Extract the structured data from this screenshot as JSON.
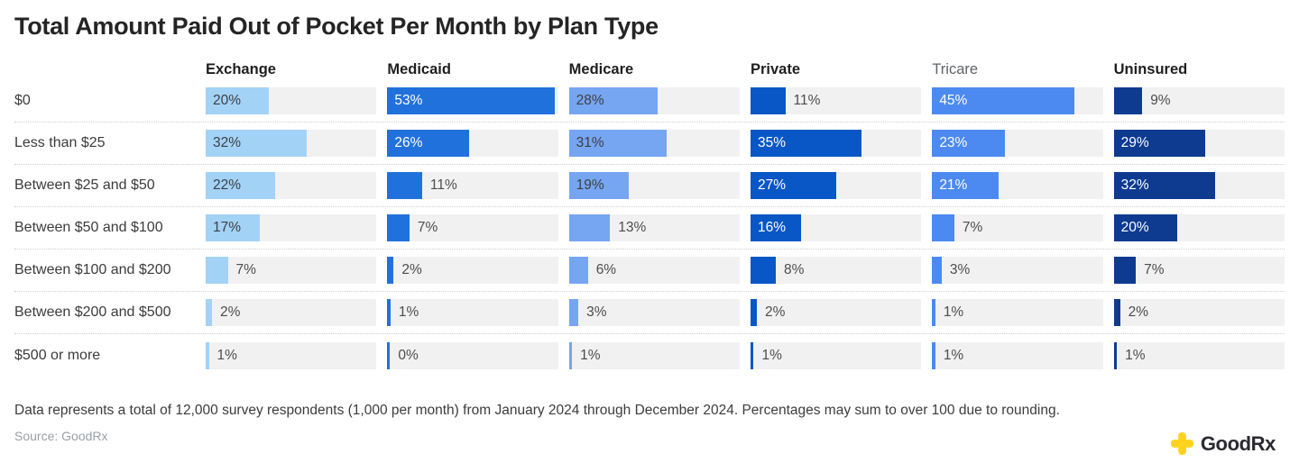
{
  "title": "Total Amount Paid Out of Pocket Per Month by Plan Type",
  "chart_data": {
    "type": "bar",
    "orientation": "horizontal",
    "value_suffix": "%",
    "axis_max": 54,
    "inside_label_min_value": 16,
    "track_color": "#f1f1f1",
    "categories": [
      "$0",
      "Less than $25",
      "Between $25 and $50",
      "Between $50 and $100",
      "Between $100 and $200",
      "Between $200 and $500",
      "$500 or more"
    ],
    "series": [
      {
        "name": "Exchange",
        "color": "#a3d2f7",
        "inside_label_color": "#3c4043",
        "header_muted": false,
        "values": [
          20,
          32,
          22,
          17,
          7,
          2,
          1
        ]
      },
      {
        "name": "Medicaid",
        "color": "#2171dc",
        "inside_label_color": "#ffffff",
        "header_muted": false,
        "values": [
          53,
          26,
          11,
          7,
          2,
          1,
          0
        ]
      },
      {
        "name": "Medicare",
        "color": "#76a5f2",
        "inside_label_color": "#3c4043",
        "header_muted": false,
        "values": [
          28,
          31,
          19,
          13,
          6,
          3,
          1
        ]
      },
      {
        "name": "Private",
        "color": "#0957c6",
        "inside_label_color": "#ffffff",
        "header_muted": false,
        "values": [
          11,
          35,
          27,
          16,
          8,
          2,
          1
        ]
      },
      {
        "name": "Tricare",
        "color": "#4c8af1",
        "inside_label_color": "#ffffff",
        "header_muted": true,
        "values": [
          45,
          23,
          21,
          7,
          3,
          1,
          1
        ]
      },
      {
        "name": "Uninsured",
        "color": "#0e3b90",
        "inside_label_color": "#ffffff",
        "header_muted": false,
        "values": [
          9,
          29,
          32,
          20,
          7,
          2,
          1
        ]
      }
    ]
  },
  "note": "Data represents a total of 12,000 survey respondents (1,000 per month) from January 2024 through December 2024. Percentages may sum to over 100 due to rounding.",
  "source": "Source: GoodRx",
  "logo": {
    "text": "GoodRx",
    "plus_color": "#ffd21e"
  }
}
